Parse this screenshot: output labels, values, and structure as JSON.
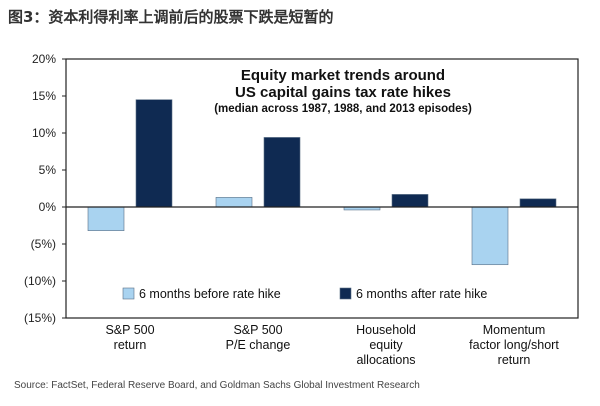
{
  "figure_title": "图3：资本利得利率上调前后的股票下跌是短暂的",
  "source": "Source: FactSet, Federal Reserve Board, and Goldman Sachs Global Investment Research",
  "colors": {
    "before": "#a9d3f0",
    "after": "#0f2a52",
    "axis": "#333333"
  },
  "chart_data": {
    "type": "bar",
    "title_line1": "Equity market trends around",
    "title_line2": "US capital gains tax rate hikes",
    "subtitle": "(median across 1987, 1988, and 2013 episodes)",
    "categories": [
      [
        "S&P 500",
        "return"
      ],
      [
        "S&P 500",
        "P/E change"
      ],
      [
        "Household",
        "equity",
        "allocations"
      ],
      [
        "Momentum",
        "factor long/short",
        "return"
      ]
    ],
    "series": [
      {
        "name": "6 months before rate hike",
        "color": "#a9d3f0",
        "values": [
          -3.2,
          1.3,
          -0.4,
          -7.8
        ]
      },
      {
        "name": "6 months after rate hike",
        "color": "#0f2a52",
        "values": [
          14.5,
          9.4,
          1.7,
          1.1
        ]
      }
    ],
    "ylim": [
      -15,
      20
    ],
    "yticks": [
      20,
      15,
      10,
      5,
      0,
      -5,
      -10,
      -15
    ],
    "ytick_labels": [
      "20%",
      "15%",
      "10%",
      "5%",
      "0%",
      "(5%)",
      "(10%)",
      "(15%)"
    ],
    "legend_position": "bottom"
  }
}
